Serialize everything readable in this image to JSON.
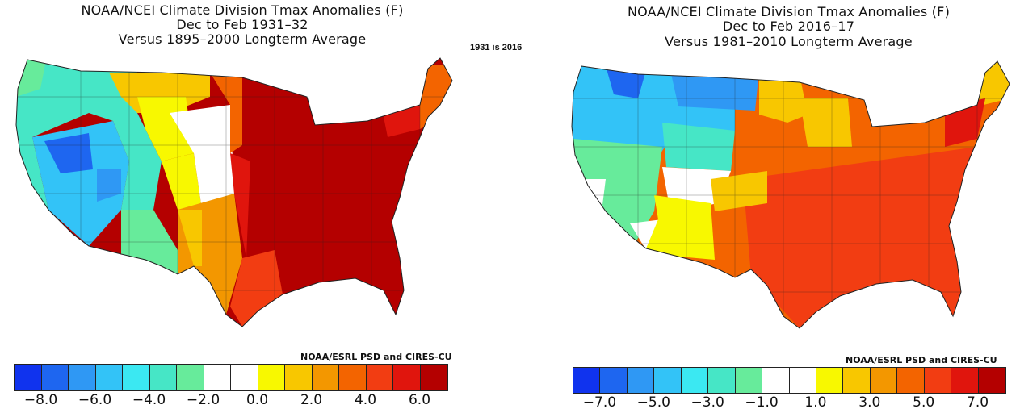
{
  "note": "1931 is 2016",
  "left": {
    "title_lines": [
      "NOAA/NCEI Climate Division Tmax Anomalies (F)",
      "Dec to Feb 1931–32",
      "Versus 1895–2000 Longterm Average"
    ],
    "credit": "NOAA/ESRL PSD and CIRES-CU",
    "legend_colors": [
      "#1033ee",
      "#1e66f0",
      "#2f98f4",
      "#33c3f7",
      "#3be8f2",
      "#46e6c6",
      "#67eb9b",
      "#ffffff",
      "#ffffff",
      "#f8f800",
      "#f8c700",
      "#f39700",
      "#f36400",
      "#f23d12",
      "#e0150d",
      "#b40000"
    ],
    "tick_labels": [
      "−8.0",
      "−6.0",
      "−4.0",
      "−2.0",
      "0.0",
      "2.0",
      "4.0",
      "6.0"
    ]
  },
  "right": {
    "title_lines": [
      "NOAA/NCEI Climate Division Tmax Anomalies (F)",
      "Dec to Feb 2016–17",
      "Versus 1981–2010 Longterm Average"
    ],
    "credit": "NOAA/ESRL PSD and CIRES-CU",
    "legend_colors": [
      "#1033ee",
      "#1e66f0",
      "#2f98f4",
      "#33c3f7",
      "#3be8f2",
      "#46e6c6",
      "#67eb9b",
      "#ffffff",
      "#ffffff",
      "#f8f800",
      "#f8c700",
      "#f39700",
      "#f36400",
      "#f23d12",
      "#e0150d",
      "#b40000"
    ],
    "tick_labels": [
      "−7.0",
      "−5.0",
      "−3.0",
      "−1.0",
      "1.0",
      "3.0",
      "5.0",
      "7.0"
    ]
  }
}
